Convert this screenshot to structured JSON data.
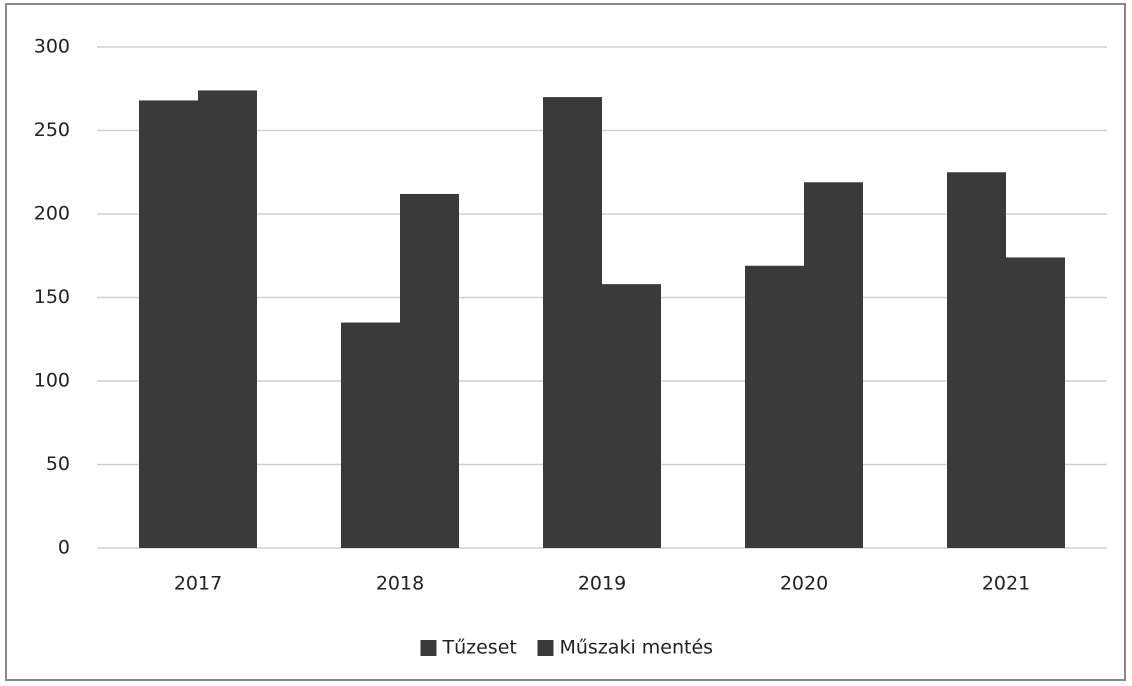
{
  "chart_data": {
    "type": "bar",
    "categories": [
      "2017",
      "2018",
      "2019",
      "2020",
      "2021"
    ],
    "series": [
      {
        "name": "Tűzeset",
        "color": "#3a3a3a",
        "values": [
          268,
          135,
          270,
          169,
          225
        ]
      },
      {
        "name": "Műszaki mentés",
        "color": "#3a3a3a",
        "values": [
          274,
          212,
          158,
          219,
          174
        ]
      }
    ],
    "ylim": [
      0,
      300
    ],
    "yticks": [
      0,
      50,
      100,
      150,
      200,
      250,
      300
    ],
    "grid": true,
    "legend": "bottom"
  }
}
